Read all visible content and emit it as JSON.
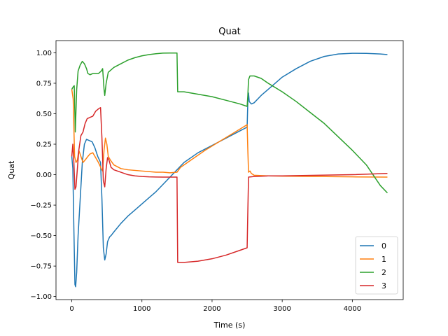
{
  "chart_data": {
    "type": "line",
    "title": "Quat",
    "xlabel": "Time (s)",
    "ylabel": "Quat",
    "xlim": [
      -225,
      4725
    ],
    "ylim": [
      -1.025,
      1.1
    ],
    "xticks": [
      0,
      1000,
      2000,
      3000,
      4000
    ],
    "yticks": [
      -1.0,
      -0.75,
      -0.5,
      -0.25,
      0.0,
      0.25,
      0.5,
      0.75,
      1.0
    ],
    "ytick_labels": [
      "−1.00",
      "−0.75",
      "−0.50",
      "−0.25",
      "0.00",
      "0.25",
      "0.50",
      "0.75",
      "1.00"
    ],
    "grid": false,
    "legend_position": "lower-right",
    "series": [
      {
        "name": "0",
        "color": "#1f77b4",
        "points": [
          [
            0,
            0.15
          ],
          [
            15,
            0.05
          ],
          [
            30,
            -0.45
          ],
          [
            45,
            -0.9
          ],
          [
            55,
            -0.92
          ],
          [
            70,
            -0.8
          ],
          [
            90,
            -0.5
          ],
          [
            120,
            -0.2
          ],
          [
            150,
            0.1
          ],
          [
            180,
            0.25
          ],
          [
            210,
            0.29
          ],
          [
            250,
            0.28
          ],
          [
            290,
            0.27
          ],
          [
            330,
            0.22
          ],
          [
            370,
            0.15
          ],
          [
            410,
            0.1
          ],
          [
            430,
            -0.2
          ],
          [
            450,
            -0.6
          ],
          [
            470,
            -0.7
          ],
          [
            490,
            -0.65
          ],
          [
            510,
            -0.55
          ],
          [
            540,
            -0.51
          ],
          [
            560,
            -0.5
          ],
          [
            600,
            -0.47
          ],
          [
            700,
            -0.4
          ],
          [
            800,
            -0.34
          ],
          [
            900,
            -0.29
          ],
          [
            1000,
            -0.24
          ],
          [
            1100,
            -0.19
          ],
          [
            1200,
            -0.14
          ],
          [
            1300,
            -0.08
          ],
          [
            1400,
            -0.02
          ],
          [
            1500,
            0.04
          ],
          [
            1600,
            0.1
          ],
          [
            1800,
            0.18
          ],
          [
            2000,
            0.24
          ],
          [
            2200,
            0.3
          ],
          [
            2400,
            0.36
          ],
          [
            2500,
            0.39
          ],
          [
            2510,
            0.6
          ],
          [
            2520,
            0.67
          ],
          [
            2530,
            0.6
          ],
          [
            2560,
            0.58
          ],
          [
            2600,
            0.59
          ],
          [
            2700,
            0.65
          ],
          [
            2800,
            0.7
          ],
          [
            2900,
            0.75
          ],
          [
            3000,
            0.8
          ],
          [
            3200,
            0.87
          ],
          [
            3400,
            0.93
          ],
          [
            3600,
            0.97
          ],
          [
            3800,
            0.99
          ],
          [
            4000,
            0.996
          ],
          [
            4200,
            0.995
          ],
          [
            4400,
            0.99
          ],
          [
            4500,
            0.985
          ]
        ]
      },
      {
        "name": "1",
        "color": "#ff7f0e",
        "points": [
          [
            0,
            0.7
          ],
          [
            20,
            0.62
          ],
          [
            40,
            0.15
          ],
          [
            60,
            0.1
          ],
          [
            80,
            0.12
          ],
          [
            100,
            0.2
          ],
          [
            130,
            0.15
          ],
          [
            160,
            0.1
          ],
          [
            190,
            0.12
          ],
          [
            230,
            0.15
          ],
          [
            260,
            0.17
          ],
          [
            300,
            0.18
          ],
          [
            340,
            0.14
          ],
          [
            380,
            0.1
          ],
          [
            420,
            0.05
          ],
          [
            440,
            0.03
          ],
          [
            460,
            0.2
          ],
          [
            480,
            0.3
          ],
          [
            500,
            0.25
          ],
          [
            520,
            0.15
          ],
          [
            550,
            0.12
          ],
          [
            600,
            0.08
          ],
          [
            700,
            0.05
          ],
          [
            800,
            0.04
          ],
          [
            900,
            0.035
          ],
          [
            1000,
            0.03
          ],
          [
            1100,
            0.025
          ],
          [
            1200,
            0.02
          ],
          [
            1300,
            0.02
          ],
          [
            1400,
            0.015
          ],
          [
            1500,
            0.02
          ],
          [
            1550,
            0.06
          ],
          [
            1700,
            0.12
          ],
          [
            1900,
            0.2
          ],
          [
            2100,
            0.27
          ],
          [
            2300,
            0.34
          ],
          [
            2500,
            0.41
          ],
          [
            2510,
            0.2
          ],
          [
            2520,
            0.02
          ],
          [
            2540,
            0.03
          ],
          [
            2560,
            0.01
          ],
          [
            2600,
            -0.005
          ],
          [
            2800,
            -0.01
          ],
          [
            3000,
            -0.012
          ],
          [
            3500,
            -0.015
          ],
          [
            4000,
            -0.018
          ],
          [
            4500,
            -0.02
          ]
        ]
      },
      {
        "name": "2",
        "color": "#2ca02c",
        "points": [
          [
            0,
            0.7
          ],
          [
            20,
            0.72
          ],
          [
            35,
            0.73
          ],
          [
            50,
            0.35
          ],
          [
            70,
            0.7
          ],
          [
            90,
            0.85
          ],
          [
            120,
            0.9
          ],
          [
            150,
            0.93
          ],
          [
            180,
            0.91
          ],
          [
            210,
            0.87
          ],
          [
            230,
            0.83
          ],
          [
            260,
            0.82
          ],
          [
            300,
            0.83
          ],
          [
            340,
            0.83
          ],
          [
            380,
            0.83
          ],
          [
            420,
            0.85
          ],
          [
            440,
            0.87
          ],
          [
            460,
            0.7
          ],
          [
            470,
            0.65
          ],
          [
            490,
            0.75
          ],
          [
            520,
            0.84
          ],
          [
            560,
            0.86
          ],
          [
            600,
            0.88
          ],
          [
            700,
            0.91
          ],
          [
            800,
            0.94
          ],
          [
            900,
            0.96
          ],
          [
            1000,
            0.975
          ],
          [
            1100,
            0.985
          ],
          [
            1200,
            0.992
          ],
          [
            1300,
            0.997
          ],
          [
            1400,
            0.998
          ],
          [
            1500,
            0.998
          ],
          [
            1510,
            0.68
          ],
          [
            1600,
            0.68
          ],
          [
            1800,
            0.66
          ],
          [
            2000,
            0.64
          ],
          [
            2200,
            0.61
          ],
          [
            2400,
            0.58
          ],
          [
            2500,
            0.56
          ],
          [
            2510,
            0.65
          ],
          [
            2520,
            0.78
          ],
          [
            2540,
            0.81
          ],
          [
            2600,
            0.81
          ],
          [
            2700,
            0.79
          ],
          [
            2800,
            0.75
          ],
          [
            3000,
            0.68
          ],
          [
            3200,
            0.6
          ],
          [
            3400,
            0.51
          ],
          [
            3600,
            0.42
          ],
          [
            3800,
            0.31
          ],
          [
            4000,
            0.2
          ],
          [
            4200,
            0.08
          ],
          [
            4400,
            -0.09
          ],
          [
            4500,
            -0.15
          ]
        ]
      },
      {
        "name": "3",
        "color": "#d62728",
        "points": [
          [
            0,
            0.15
          ],
          [
            15,
            0.25
          ],
          [
            30,
            0.1
          ],
          [
            45,
            -0.12
          ],
          [
            60,
            -0.1
          ],
          [
            80,
            0.05
          ],
          [
            100,
            0.2
          ],
          [
            130,
            0.32
          ],
          [
            160,
            0.35
          ],
          [
            190,
            0.42
          ],
          [
            220,
            0.46
          ],
          [
            260,
            0.47
          ],
          [
            300,
            0.48
          ],
          [
            340,
            0.52
          ],
          [
            380,
            0.54
          ],
          [
            410,
            0.55
          ],
          [
            430,
            0.3
          ],
          [
            450,
            -0.05
          ],
          [
            470,
            -0.1
          ],
          [
            490,
            0.05
          ],
          [
            510,
            0.14
          ],
          [
            530,
            0.12
          ],
          [
            560,
            0.06
          ],
          [
            600,
            0.04
          ],
          [
            700,
            0.02
          ],
          [
            800,
            0.0
          ],
          [
            900,
            -0.01
          ],
          [
            1000,
            -0.015
          ],
          [
            1100,
            -0.018
          ],
          [
            1200,
            -0.019
          ],
          [
            1300,
            -0.02
          ],
          [
            1400,
            -0.02
          ],
          [
            1500,
            -0.02
          ],
          [
            1510,
            -0.72
          ],
          [
            1600,
            -0.72
          ],
          [
            1800,
            -0.71
          ],
          [
            2000,
            -0.69
          ],
          [
            2200,
            -0.66
          ],
          [
            2400,
            -0.62
          ],
          [
            2500,
            -0.6
          ],
          [
            2510,
            -0.3
          ],
          [
            2520,
            -0.02
          ],
          [
            2600,
            -0.015
          ],
          [
            2800,
            -0.01
          ],
          [
            3000,
            -0.01
          ],
          [
            3500,
            -0.005
          ],
          [
            4000,
            0.0
          ],
          [
            4500,
            0.01
          ]
        ]
      }
    ]
  }
}
